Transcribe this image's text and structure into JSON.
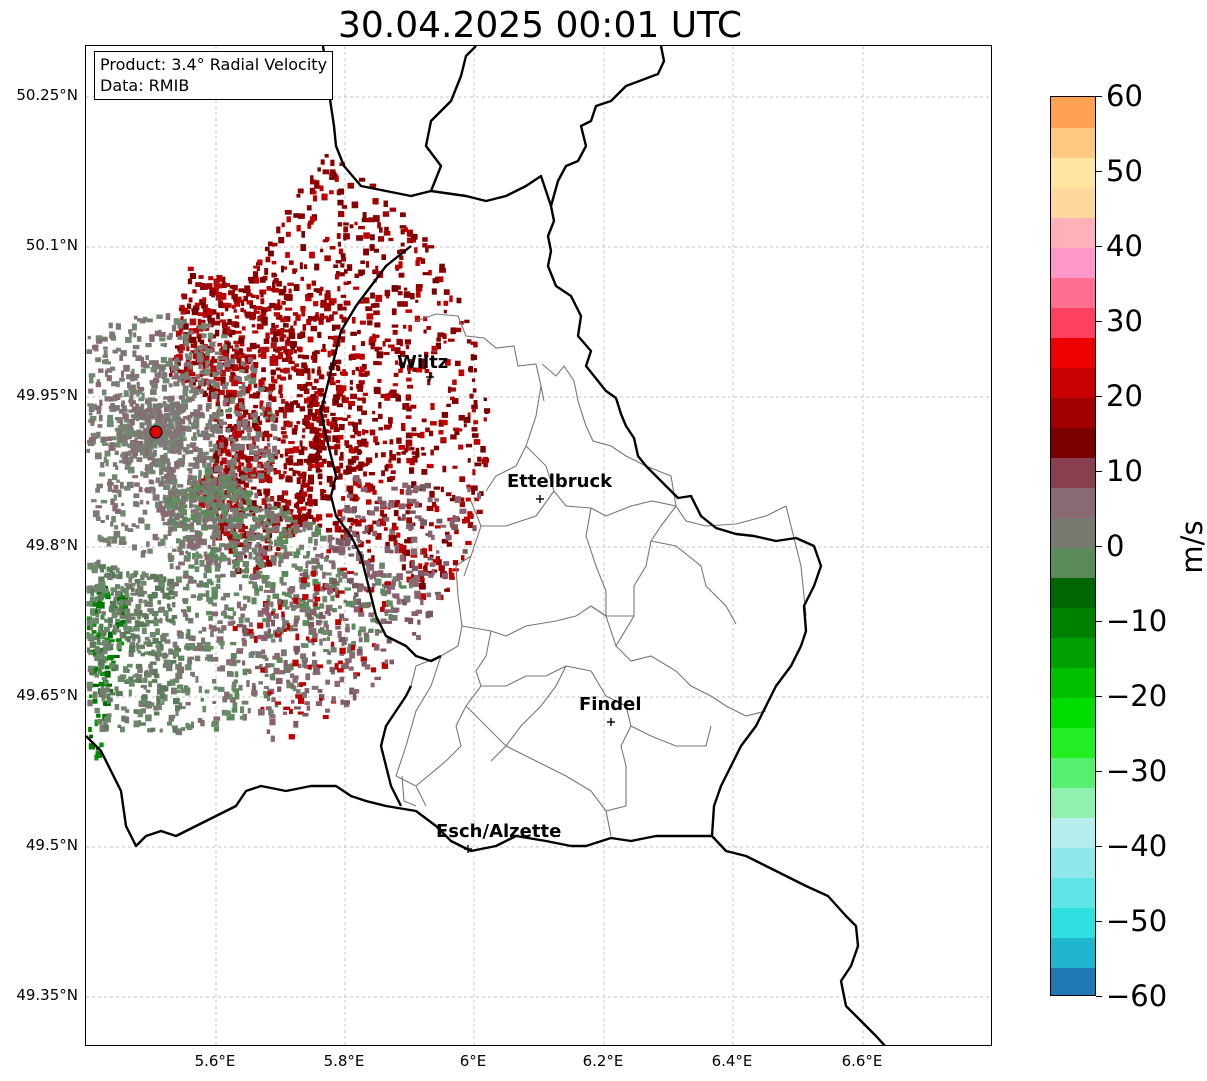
{
  "title": "30.04.2025 00:01 UTC",
  "info_box": {
    "product": "Product: 3.4° Radial Velocity",
    "source": "Data: RMIB"
  },
  "cities": [
    {
      "name": "Wiltz",
      "lon": 5.93,
      "lat": 49.967
    },
    {
      "name": "Ettelbruck",
      "lon": 6.1,
      "lat": 49.85
    },
    {
      "name": "Findel",
      "lon": 6.21,
      "lat": 49.628
    },
    {
      "name": "Esch/Alzette",
      "lon": 5.99,
      "lat": 49.5
    }
  ],
  "radar_site": {
    "lon": 5.505,
    "lat": 49.915
  },
  "lat_ticks": [
    "50.25°N",
    "50.1°N",
    "49.95°N",
    "49.8°N",
    "49.65°N",
    "49.5°N",
    "49.35°N"
  ],
  "lon_ticks": [
    "5.6°E",
    "5.8°E",
    "6°E",
    "6.2°E",
    "6.4°E",
    "6.6°E"
  ],
  "colorbar": {
    "unit": "m/s",
    "ticks": [
      "60",
      "50",
      "40",
      "30",
      "20",
      "10",
      "0",
      "−10",
      "−20",
      "−30",
      "−40",
      "−50",
      "−60"
    ],
    "min": -60,
    "max": 60,
    "colors": [
      "#1f77b4",
      "#1fb5cf",
      "#2ee0e0",
      "#5ee6e6",
      "#8ee8ea",
      "#b6eef0",
      "#8ff0b0",
      "#55f070",
      "#22ee22",
      "#00dd00",
      "#00c000",
      "#00a000",
      "#008000",
      "#006600",
      "#5a8a5a",
      "#777a70",
      "#8a6a72",
      "#884050",
      "#7a0000",
      "#a00000",
      "#c80000",
      "#ee0000",
      "#ff4060",
      "#ff7090",
      "#ff98c8",
      "#ffb0b8",
      "#ffd8a0",
      "#ffe6a0",
      "#ffc880",
      "#ffa055"
    ]
  }
}
